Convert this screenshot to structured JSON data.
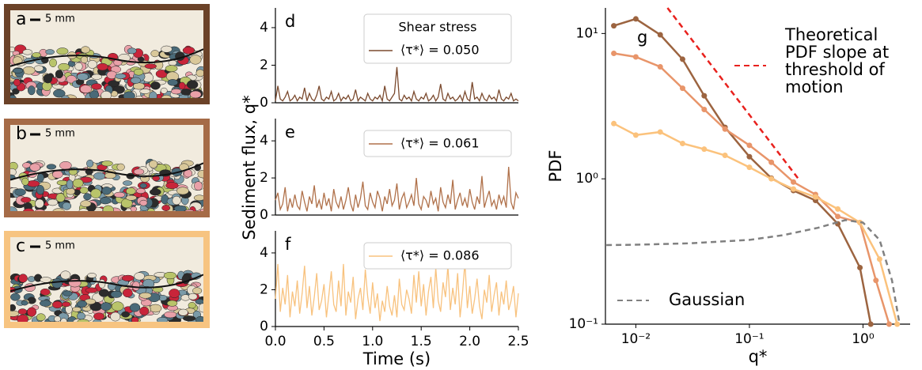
{
  "photos": [
    {
      "label": "a",
      "scale": "5 mm",
      "color": "#6b4228"
    },
    {
      "label": "b",
      "scale": "5 mm",
      "color": "#a56b47"
    },
    {
      "label": "c",
      "scale": "5 mm",
      "color": "#f7c481"
    }
  ],
  "chart_data": [
    {
      "type": "line",
      "panel_label": "d",
      "legend_title": "Shear stress",
      "ylim": [
        0,
        5.05
      ],
      "yticks": [
        0,
        2,
        4
      ],
      "xlim": [
        0,
        2.5
      ],
      "x": [
        0,
        0.025,
        0.05,
        0.075,
        0.1,
        0.125,
        0.15,
        0.175,
        0.2,
        0.225,
        0.25,
        0.275,
        0.3,
        0.325,
        0.35,
        0.375,
        0.4,
        0.425,
        0.45,
        0.475,
        0.5,
        0.525,
        0.55,
        0.575,
        0.6,
        0.625,
        0.65,
        0.675,
        0.7,
        0.725,
        0.75,
        0.775,
        0.8,
        0.825,
        0.85,
        0.875,
        0.9,
        0.925,
        0.95,
        0.975,
        1,
        1.025,
        1.05,
        1.075,
        1.1,
        1.125,
        1.15,
        1.175,
        1.2,
        1.225,
        1.25,
        1.275,
        1.3,
        1.325,
        1.35,
        1.375,
        1.4,
        1.425,
        1.45,
        1.475,
        1.5,
        1.525,
        1.55,
        1.575,
        1.6,
        1.625,
        1.65,
        1.675,
        1.7,
        1.725,
        1.75,
        1.775,
        1.8,
        1.825,
        1.85,
        1.875,
        1.9,
        1.925,
        1.95,
        1.975,
        2,
        2.025,
        2.05,
        2.075,
        2.1,
        2.125,
        2.15,
        2.175,
        2.2,
        2.225,
        2.25,
        2.275,
        2.3,
        2.325,
        2.35,
        2.375,
        2.4,
        2.425,
        2.45,
        2.475,
        2.5
      ],
      "series": [
        {
          "name": "⟨τ*⟩ = 0.050",
          "color": "#7b4a2e",
          "values": [
            0.1,
            0.9,
            0.2,
            0.1,
            0.3,
            0.6,
            0.1,
            0.2,
            0.4,
            0.1,
            0.3,
            0.2,
            0.8,
            0.1,
            0.5,
            0.2,
            0.1,
            0.4,
            0.9,
            0.2,
            0.1,
            0.3,
            0.2,
            0.6,
            0.1,
            0.2,
            0.5,
            0.1,
            0.3,
            0.2,
            0.4,
            0.1,
            0.2,
            0.7,
            0.1,
            0.3,
            0.2,
            0.1,
            0.5,
            0.2,
            0.1,
            0.3,
            0.2,
            0.4,
            0.1,
            0.9,
            0.2,
            0.1,
            0.3,
            0.5,
            1.9,
            0.2,
            0.1,
            0.4,
            0.2,
            0.3,
            0.1,
            0.6,
            0.2,
            0.1,
            0.3,
            0.2,
            0.5,
            0.1,
            0.2,
            0.4,
            0.1,
            0.3,
            1.0,
            0.2,
            0.1,
            0.5,
            0.2,
            0.3,
            0.1,
            0.2,
            0.4,
            0.1,
            0.6,
            0.2,
            0.1,
            1.1,
            0.2,
            0.3,
            0.1,
            0.5,
            0.2,
            0.1,
            0.4,
            0.2,
            0.3,
            0.1,
            0.7,
            0.2,
            0.1,
            0.3,
            0.2,
            0.5,
            0.1,
            0.2,
            0.1
          ]
        }
      ]
    },
    {
      "type": "line",
      "panel_label": "e",
      "ylabel": "Sediment flux, q*",
      "ylim": [
        0,
        5.2
      ],
      "yticks": [
        0,
        2,
        4
      ],
      "xlim": [
        0,
        2.5
      ],
      "x": [
        0,
        0.025,
        0.05,
        0.075,
        0.1,
        0.125,
        0.15,
        0.175,
        0.2,
        0.225,
        0.25,
        0.275,
        0.3,
        0.325,
        0.35,
        0.375,
        0.4,
        0.425,
        0.45,
        0.475,
        0.5,
        0.525,
        0.55,
        0.575,
        0.6,
        0.625,
        0.65,
        0.675,
        0.7,
        0.725,
        0.75,
        0.775,
        0.8,
        0.825,
        0.85,
        0.875,
        0.9,
        0.925,
        0.95,
        0.975,
        1,
        1.025,
        1.05,
        1.075,
        1.1,
        1.125,
        1.15,
        1.175,
        1.2,
        1.225,
        1.25,
        1.275,
        1.3,
        1.325,
        1.35,
        1.375,
        1.4,
        1.425,
        1.45,
        1.475,
        1.5,
        1.525,
        1.55,
        1.575,
        1.6,
        1.625,
        1.65,
        1.675,
        1.7,
        1.725,
        1.75,
        1.775,
        1.8,
        1.825,
        1.85,
        1.875,
        1.9,
        1.925,
        1.95,
        1.975,
        2,
        2.025,
        2.05,
        2.075,
        2.1,
        2.125,
        2.15,
        2.175,
        2.2,
        2.225,
        2.25,
        2.275,
        2.3,
        2.325,
        2.35,
        2.375,
        2.4,
        2.425,
        2.45,
        2.475,
        2.5
      ],
      "series": [
        {
          "name": "⟨τ*⟩ = 0.061",
          "color": "#b0714a",
          "values": [
            0.8,
            1.2,
            0.3,
            0.6,
            1.5,
            0.2,
            0.9,
            0.4,
            1.1,
            0.5,
            0.3,
            1.3,
            0.7,
            0.2,
            1.0,
            0.6,
            1.6,
            0.4,
            0.8,
            0.3,
            1.2,
            0.5,
            0.9,
            0.2,
            1.4,
            0.7,
            0.4,
            1.0,
            0.3,
            0.8,
            1.5,
            0.6,
            0.2,
            1.1,
            0.4,
            0.9,
            1.8,
            0.5,
            0.3,
            1.2,
            0.7,
            0.4,
            1.3,
            0.9,
            0.2,
            1.0,
            0.6,
            1.4,
            0.5,
            0.8,
            1.7,
            0.3,
            0.9,
            1.2,
            0.4,
            0.7,
            1.1,
            0.5,
            2.0,
            0.6,
            0.3,
            1.0,
            0.8,
            0.4,
            1.3,
            0.6,
            0.9,
            0.2,
            1.5,
            0.7,
            0.4,
            1.1,
            0.6,
            1.9,
            0.3,
            0.8,
            1.2,
            0.5,
            0.9,
            0.4,
            1.4,
            0.7,
            0.3,
            1.0,
            0.6,
            2.1,
            0.4,
            0.9,
            1.3,
            0.5,
            0.8,
            0.3,
            1.1,
            0.6,
            1.0,
            0.4,
            2.6,
            0.7,
            0.3,
            1.2,
            0.9
          ]
        }
      ]
    },
    {
      "type": "line",
      "panel_label": "f",
      "xlabel": "Time (s)",
      "ylim": [
        0,
        5.2
      ],
      "yticks": [
        0,
        2,
        4
      ],
      "xlim": [
        0,
        2.5
      ],
      "xticks": [
        {
          "value": 0,
          "label": "0.0"
        },
        0.5,
        {
          "value": 1,
          "label": "1.0"
        },
        1.5,
        {
          "value": 2,
          "label": "2.0"
        },
        2.5
      ],
      "x": [
        0,
        0.025,
        0.05,
        0.075,
        0.1,
        0.125,
        0.15,
        0.175,
        0.2,
        0.225,
        0.25,
        0.275,
        0.3,
        0.325,
        0.35,
        0.375,
        0.4,
        0.425,
        0.45,
        0.475,
        0.5,
        0.525,
        0.55,
        0.575,
        0.6,
        0.625,
        0.65,
        0.675,
        0.7,
        0.725,
        0.75,
        0.775,
        0.8,
        0.825,
        0.85,
        0.875,
        0.9,
        0.925,
        0.95,
        0.975,
        1,
        1.025,
        1.05,
        1.075,
        1.1,
        1.125,
        1.15,
        1.175,
        1.2,
        1.225,
        1.25,
        1.275,
        1.3,
        1.325,
        1.35,
        1.375,
        1.4,
        1.425,
        1.45,
        1.475,
        1.5,
        1.525,
        1.55,
        1.575,
        1.6,
        1.625,
        1.65,
        1.675,
        1.7,
        1.725,
        1.75,
        1.775,
        1.8,
        1.825,
        1.85,
        1.875,
        1.9,
        1.925,
        1.95,
        1.975,
        2,
        2.025,
        2.05,
        2.075,
        2.1,
        2.125,
        2.15,
        2.175,
        2.2,
        2.225,
        2.25,
        2.275,
        2.3,
        2.325,
        2.35,
        2.375,
        2.4,
        2.425,
        2.45,
        2.475,
        2.5
      ],
      "series": [
        {
          "name": "⟨τ*⟩ = 0.086",
          "color": "#f8c27e",
          "values": [
            1.5,
            3.4,
            0.8,
            2.1,
            1.2,
            2.8,
            0.5,
            1.9,
            1.1,
            2.5,
            0.7,
            1.8,
            3.3,
            1.0,
            2.2,
            0.6,
            1.6,
            2.9,
            0.9,
            1.4,
            2.3,
            0.5,
            1.7,
            3.0,
            1.2,
            0.8,
            2.5,
            1.1,
            3.4,
            0.6,
            1.9,
            1.3,
            2.7,
            0.4,
            1.5,
            2.1,
            0.9,
            3.1,
            1.6,
            0.7,
            2.4,
            1.0,
            1.8,
            0.3,
            1.4,
            0.8,
            2.2,
            1.1,
            0.6,
            1.7,
            0.5,
            2.6,
            1.2,
            0.9,
            2.0,
            1.5,
            0.7,
            2.8,
            1.3,
            3.0,
            1.1,
            2.3,
            0.6,
            1.9,
            2.7,
            1.0,
            3.2,
            1.4,
            0.8,
            2.4,
            1.6,
            3.3,
            0.9,
            2.1,
            1.2,
            2.9,
            0.5,
            1.8,
            3.5,
            1.0,
            2.2,
            0.7,
            1.5,
            2.6,
            1.1,
            0.4,
            2.0,
            1.3,
            2.8,
            0.8,
            1.7,
            2.4,
            0.6,
            1.9,
            1.2,
            2.5,
            0.9,
            1.4,
            2.2,
            0.5,
            1.8
          ]
        }
      ]
    },
    {
      "type": "loglog",
      "panel_label": "g",
      "xlabel": "q*",
      "ylabel": "PDF",
      "log_x": true,
      "log_y": true,
      "xlim": [
        0.0054,
        2.6
      ],
      "ylim": [
        0.1,
        15
      ],
      "xticks": [
        {
          "value": 0.01,
          "label": "10⁻²"
        },
        {
          "value": 0.1,
          "label": "10⁻¹"
        },
        {
          "value": 1,
          "label": "10⁰"
        }
      ],
      "yticks": [
        {
          "value": 0.1,
          "label": "10⁻¹"
        },
        {
          "value": 1,
          "label": "10⁰"
        },
        {
          "value": 10,
          "label": "10¹"
        }
      ],
      "series": [
        {
          "color": "#9c6440",
          "markers": true,
          "x": [
            0.0064,
            0.01,
            0.0164,
            0.0258,
            0.04,
            0.061,
            0.1,
            0.156,
            0.244,
            0.382,
            0.6,
            0.94,
            1.17
          ],
          "values": [
            11.3,
            12.6,
            9.8,
            6.65,
            3.73,
            2.26,
            1.42,
            1.01,
            0.83,
            0.71,
            0.49,
            0.245,
            0.1
          ]
        },
        {
          "color": "#e8956a",
          "markers": true,
          "x": [
            0.0064,
            0.01,
            0.0164,
            0.0258,
            0.04,
            0.061,
            0.1,
            0.156,
            0.244,
            0.382,
            0.6,
            0.94,
            1.3,
            1.7
          ],
          "values": [
            7.3,
            6.9,
            5.9,
            4.2,
            3.0,
            2.2,
            1.7,
            1.3,
            0.95,
            0.78,
            0.55,
            0.5,
            0.2,
            0.1
          ]
        },
        {
          "color": "#fbc27c",
          "markers": true,
          "x": [
            0.0064,
            0.01,
            0.0164,
            0.0258,
            0.04,
            0.061,
            0.1,
            0.156,
            0.244,
            0.382,
            0.6,
            0.94,
            1.4,
            2.0
          ],
          "values": [
            2.4,
            2.0,
            2.1,
            1.75,
            1.6,
            1.45,
            1.2,
            1.0,
            0.85,
            0.75,
            0.62,
            0.5,
            0.28,
            0.1
          ]
        },
        {
          "name": "Theoretical\n PDF slope at\nthreshold of\nmotion",
          "color": "#e8211d",
          "dash": true,
          "x": [
            0.019,
            0.27
          ],
          "values": [
            15,
            1.0
          ]
        },
        {
          "name": "Gaussian",
          "color": "#808080",
          "dash": true,
          "x": [
            0.0055,
            0.01,
            0.03,
            0.1,
            0.2,
            0.4,
            0.7,
            1.0,
            1.4,
            1.8,
            2.1
          ],
          "values": [
            0.35,
            0.352,
            0.36,
            0.38,
            0.41,
            0.46,
            0.52,
            0.5,
            0.38,
            0.2,
            0.1
          ]
        }
      ]
    }
  ]
}
